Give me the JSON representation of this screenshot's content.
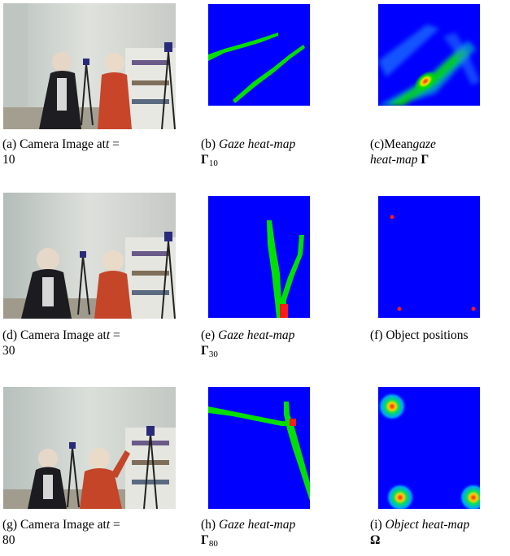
{
  "figure": {
    "panels": [
      {
        "id": "a",
        "tag": "(a)",
        "text": "Camera Image at",
        "var": "t",
        "eq": "=",
        "value": "10"
      },
      {
        "id": "b",
        "tag": "(b)",
        "italic": "Gaze heat-map",
        "symbol": "Γ",
        "sub": "10"
      },
      {
        "id": "c",
        "tag": "(c)",
        "text": "Mean",
        "italic1": "gaze",
        "italic2": "heat-map",
        "symbol": "Γ"
      },
      {
        "id": "d",
        "tag": "(d)",
        "text": "Camera Image at",
        "var": "t",
        "eq": "=",
        "value": "30"
      },
      {
        "id": "e",
        "tag": "(e)",
        "italic": "Gaze heat-map",
        "symbol": "Γ",
        "sub": "30"
      },
      {
        "id": "f",
        "tag": "(f)",
        "text": "Object positions"
      },
      {
        "id": "g",
        "tag": "(g)",
        "text": "Camera Image at",
        "var": "t",
        "eq": "=",
        "value": "80"
      },
      {
        "id": "h",
        "tag": "(h)",
        "italic": "Gaze heat-map",
        "symbol": "Γ",
        "sub": "80"
      },
      {
        "id": "i",
        "tag": "(i)",
        "italic": "Object heat-map",
        "symbol": "Ω"
      }
    ]
  },
  "colors": {
    "heatmap_background": "#0000ff",
    "gaze_path": "#00e000",
    "hotspot": "#ff1a1a",
    "photo_wall": "#cfd2cc",
    "photo_floor": "#9a9588"
  }
}
